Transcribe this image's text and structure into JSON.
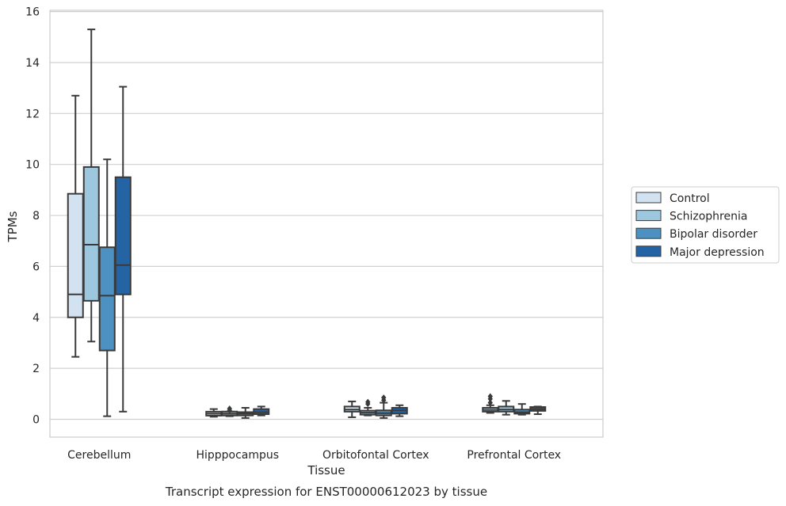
{
  "caption": "Transcript expression for ENST00000612023 by tissue",
  "colors": {
    "Control": "#d2e2f1",
    "Schizophrenia": "#9dc6df",
    "Bipolar disorder": "#4d91c3",
    "Major depression": "#2464a4",
    "line": "#3a3a3a",
    "grid": "#d0d0d0",
    "frame": "#cccccc"
  },
  "chart_data": {
    "type": "box",
    "xlabel": "Tissue",
    "ylabel": "TPMs",
    "ylim": [
      -0.7,
      16.05
    ],
    "yticks": [
      0,
      2,
      4,
      6,
      8,
      10,
      12,
      14,
      16
    ],
    "grid": true,
    "legend_placement": "right",
    "categories": [
      "Cerebellum",
      "Hipppocampus",
      "Orbitofontal Cortex",
      "Prefrontal Cortex"
    ],
    "series": [
      {
        "name": "Control",
        "boxes": [
          {
            "whislo": 2.45,
            "q1": 4.0,
            "med": 4.9,
            "q3": 8.85,
            "whishi": 12.7,
            "fliers": []
          },
          {
            "whislo": 0.1,
            "q1": 0.17,
            "med": 0.22,
            "q3": 0.27,
            "whishi": 0.4,
            "fliers": []
          },
          {
            "whislo": 0.08,
            "q1": 0.3,
            "med": 0.38,
            "q3": 0.5,
            "whishi": 0.7,
            "fliers": []
          },
          {
            "whislo": 0.25,
            "q1": 0.3,
            "med": 0.37,
            "q3": 0.45,
            "whishi": 0.55,
            "fliers": [
              0.65,
              0.8,
              0.9
            ]
          }
        ]
      },
      {
        "name": "Schizophrenia",
        "boxes": [
          {
            "whislo": 3.05,
            "q1": 4.65,
            "med": 6.85,
            "q3": 9.9,
            "whishi": 15.3,
            "fliers": []
          },
          {
            "whislo": 0.12,
            "q1": 0.18,
            "med": 0.22,
            "q3": 0.27,
            "whishi": 0.3,
            "fliers": [
              0.35,
              0.42
            ]
          },
          {
            "whislo": 0.15,
            "q1": 0.2,
            "med": 0.26,
            "q3": 0.32,
            "whishi": 0.45,
            "fliers": [
              0.6,
              0.68
            ]
          },
          {
            "whislo": 0.18,
            "q1": 0.3,
            "med": 0.38,
            "q3": 0.5,
            "whishi": 0.72,
            "fliers": []
          }
        ]
      },
      {
        "name": "Bipolar disorder",
        "boxes": [
          {
            "whislo": 0.12,
            "q1": 2.7,
            "med": 4.85,
            "q3": 6.75,
            "whishi": 10.2,
            "fliers": []
          },
          {
            "whislo": 0.05,
            "q1": 0.15,
            "med": 0.22,
            "q3": 0.28,
            "whishi": 0.45,
            "fliers": []
          },
          {
            "whislo": 0.05,
            "q1": 0.15,
            "med": 0.24,
            "q3": 0.35,
            "whishi": 0.65,
            "fliers": [
              0.75,
              0.85
            ]
          },
          {
            "whislo": 0.18,
            "q1": 0.22,
            "med": 0.28,
            "q3": 0.38,
            "whishi": 0.6,
            "fliers": []
          }
        ]
      },
      {
        "name": "Major depression",
        "boxes": [
          {
            "whislo": 0.3,
            "q1": 4.9,
            "med": 6.05,
            "q3": 9.5,
            "whishi": 13.05,
            "fliers": []
          },
          {
            "whislo": 0.15,
            "q1": 0.2,
            "med": 0.28,
            "q3": 0.4,
            "whishi": 0.5,
            "fliers": []
          },
          {
            "whislo": 0.12,
            "q1": 0.22,
            "med": 0.35,
            "q3": 0.45,
            "whishi": 0.55,
            "fliers": []
          },
          {
            "whislo": 0.2,
            "q1": 0.33,
            "med": 0.4,
            "q3": 0.48,
            "whishi": 0.5,
            "fliers": []
          }
        ]
      }
    ]
  }
}
